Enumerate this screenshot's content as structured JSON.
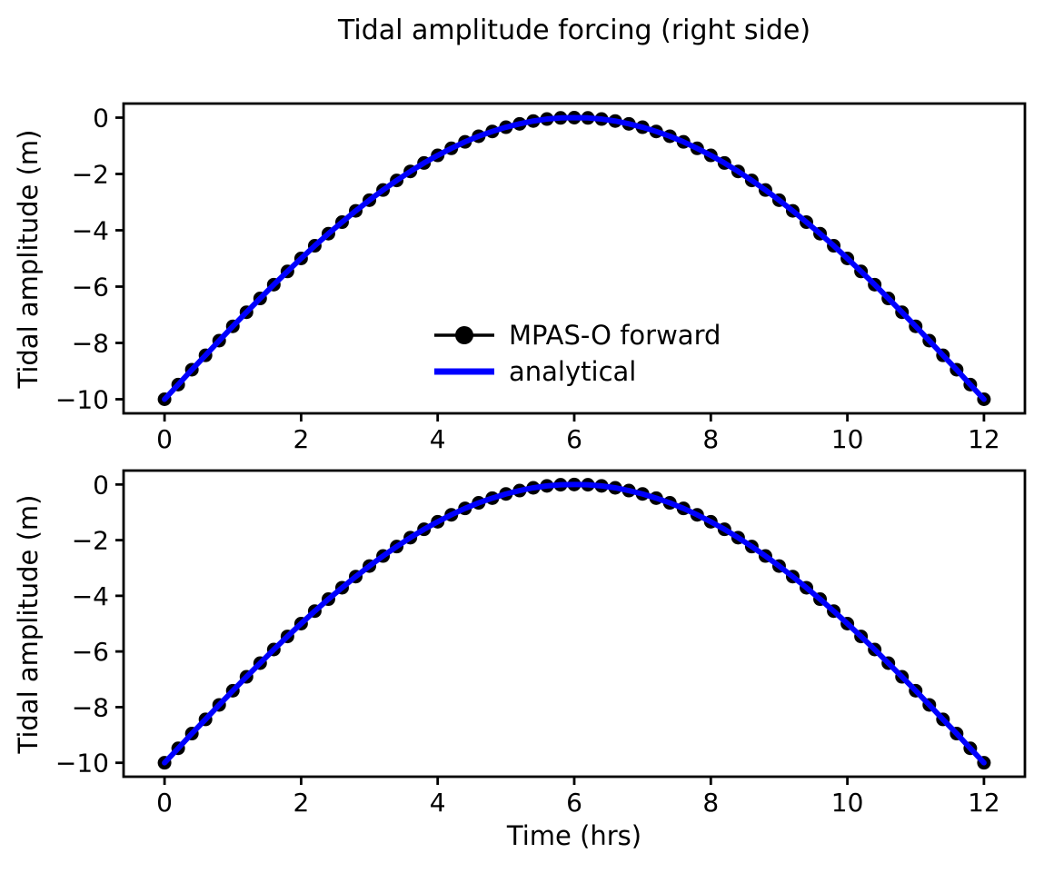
{
  "figure": {
    "title": "Tidal amplitude forcing (right side)",
    "background": "#ffffff",
    "text_color": "#000000"
  },
  "legend": {
    "position": "center of top subplot",
    "frame": false,
    "items": [
      {
        "label": "MPAS-O forward",
        "color": "#000000",
        "style": "line-with-circle-marker"
      },
      {
        "label": "analytical",
        "color": "#0000ff",
        "style": "thick-line"
      }
    ]
  },
  "chart_data": [
    {
      "type": "line",
      "subplot": "top",
      "xlabel": "",
      "ylabel": "Tidal amplitude (m)",
      "xticks": [
        0,
        2,
        4,
        6,
        8,
        10,
        12
      ],
      "yticks": [
        0,
        -2,
        -4,
        -6,
        -8,
        -10
      ],
      "xlim": [
        -0.6,
        12.6
      ],
      "ylim": [
        -10.5,
        0.5
      ],
      "grid": false,
      "x": [
        0,
        0.2,
        0.4,
        0.6,
        0.8,
        1,
        1.2,
        1.4,
        1.6,
        1.8,
        2,
        2.2,
        2.4,
        2.6,
        2.8,
        3,
        3.2,
        3.4,
        3.6,
        3.8,
        4,
        4.2,
        4.4,
        4.6,
        4.8,
        5,
        5.2,
        5.4,
        5.6,
        5.8,
        6,
        6.2,
        6.4,
        6.6,
        6.8,
        7,
        7.2,
        7.4,
        7.6,
        7.8,
        8,
        8.2,
        8.4,
        8.6,
        8.8,
        9,
        9.2,
        9.4,
        9.6,
        9.8,
        10,
        10.2,
        10.4,
        10.6,
        10.8,
        11,
        11.2,
        11.4,
        11.6,
        11.8,
        12
      ],
      "series": [
        {
          "name": "MPAS-O forward",
          "color": "#000000",
          "marker": "o",
          "marker_color": "#000000",
          "values": [
            -10,
            -9.48,
            -8.95,
            -8.44,
            -7.92,
            -7.41,
            -6.91,
            -6.42,
            -5.93,
            -5.46,
            -5,
            -4.55,
            -4.12,
            -3.71,
            -3.31,
            -2.93,
            -2.57,
            -2.23,
            -1.91,
            -1.61,
            -1.34,
            -1.09,
            -0.86,
            -0.66,
            -0.49,
            -0.34,
            -0.22,
            -0.12,
            -0.05,
            -0.01,
            0,
            -0.01,
            -0.05,
            -0.12,
            -0.22,
            -0.34,
            -0.49,
            -0.66,
            -0.86,
            -1.09,
            -1.34,
            -1.61,
            -1.91,
            -2.23,
            -2.57,
            -2.93,
            -3.31,
            -3.71,
            -4.12,
            -4.55,
            -5,
            -5.46,
            -5.93,
            -6.42,
            -6.91,
            -7.41,
            -7.92,
            -8.44,
            -8.95,
            -9.48,
            -10
          ]
        },
        {
          "name": "analytical",
          "color": "#0000ff",
          "values": [
            -10,
            -9.48,
            -8.95,
            -8.44,
            -7.92,
            -7.41,
            -6.91,
            -6.42,
            -5.93,
            -5.46,
            -5,
            -4.55,
            -4.12,
            -3.71,
            -3.31,
            -2.93,
            -2.57,
            -2.23,
            -1.91,
            -1.61,
            -1.34,
            -1.09,
            -0.86,
            -0.66,
            -0.49,
            -0.34,
            -0.22,
            -0.12,
            -0.05,
            -0.01,
            0,
            -0.01,
            -0.05,
            -0.12,
            -0.22,
            -0.34,
            -0.49,
            -0.66,
            -0.86,
            -1.09,
            -1.34,
            -1.61,
            -1.91,
            -2.23,
            -2.57,
            -2.93,
            -3.31,
            -3.71,
            -4.12,
            -4.55,
            -5,
            -5.46,
            -5.93,
            -6.42,
            -6.91,
            -7.41,
            -7.92,
            -8.44,
            -8.95,
            -9.48,
            -10
          ]
        }
      ]
    },
    {
      "type": "line",
      "subplot": "bottom",
      "xlabel": "Time (hrs)",
      "ylabel": "Tidal amplitude (m)",
      "xticks": [
        0,
        2,
        4,
        6,
        8,
        10,
        12
      ],
      "yticks": [
        0,
        -2,
        -4,
        -6,
        -8,
        -10
      ],
      "xlim": [
        -0.6,
        12.6
      ],
      "ylim": [
        -10.5,
        0.5
      ],
      "grid": false,
      "x": [
        0,
        0.2,
        0.4,
        0.6,
        0.8,
        1,
        1.2,
        1.4,
        1.6,
        1.8,
        2,
        2.2,
        2.4,
        2.6,
        2.8,
        3,
        3.2,
        3.4,
        3.6,
        3.8,
        4,
        4.2,
        4.4,
        4.6,
        4.8,
        5,
        5.2,
        5.4,
        5.6,
        5.8,
        6,
        6.2,
        6.4,
        6.6,
        6.8,
        7,
        7.2,
        7.4,
        7.6,
        7.8,
        8,
        8.2,
        8.4,
        8.6,
        8.8,
        9,
        9.2,
        9.4,
        9.6,
        9.8,
        10,
        10.2,
        10.4,
        10.6,
        10.8,
        11,
        11.2,
        11.4,
        11.6,
        11.8,
        12
      ],
      "series": [
        {
          "name": "MPAS-O forward",
          "color": "#000000",
          "marker": "o",
          "marker_color": "#000000",
          "values": [
            -10,
            -9.48,
            -8.95,
            -8.44,
            -7.92,
            -7.41,
            -6.91,
            -6.42,
            -5.93,
            -5.46,
            -5,
            -4.55,
            -4.12,
            -3.71,
            -3.31,
            -2.93,
            -2.57,
            -2.23,
            -1.91,
            -1.61,
            -1.34,
            -1.09,
            -0.86,
            -0.66,
            -0.49,
            -0.34,
            -0.22,
            -0.12,
            -0.05,
            -0.01,
            0,
            -0.01,
            -0.05,
            -0.12,
            -0.22,
            -0.34,
            -0.49,
            -0.66,
            -0.86,
            -1.09,
            -1.34,
            -1.61,
            -1.91,
            -2.23,
            -2.57,
            -2.93,
            -3.31,
            -3.71,
            -4.12,
            -4.55,
            -5,
            -5.46,
            -5.93,
            -6.42,
            -6.91,
            -7.41,
            -7.92,
            -8.44,
            -8.95,
            -9.48,
            -10
          ]
        },
        {
          "name": "analytical",
          "color": "#0000ff",
          "values": [
            -10,
            -9.48,
            -8.95,
            -8.44,
            -7.92,
            -7.41,
            -6.91,
            -6.42,
            -5.93,
            -5.46,
            -5,
            -4.55,
            -4.12,
            -3.71,
            -3.31,
            -2.93,
            -2.57,
            -2.23,
            -1.91,
            -1.61,
            -1.34,
            -1.09,
            -0.86,
            -0.66,
            -0.49,
            -0.34,
            -0.22,
            -0.12,
            -0.05,
            -0.01,
            0,
            -0.01,
            -0.05,
            -0.12,
            -0.22,
            -0.34,
            -0.49,
            -0.66,
            -0.86,
            -1.09,
            -1.34,
            -1.61,
            -1.91,
            -2.23,
            -2.57,
            -2.93,
            -3.31,
            -3.71,
            -4.12,
            -4.55,
            -5,
            -5.46,
            -5.93,
            -6.42,
            -6.91,
            -7.41,
            -7.92,
            -8.44,
            -8.95,
            -9.48,
            -10
          ]
        }
      ]
    }
  ]
}
